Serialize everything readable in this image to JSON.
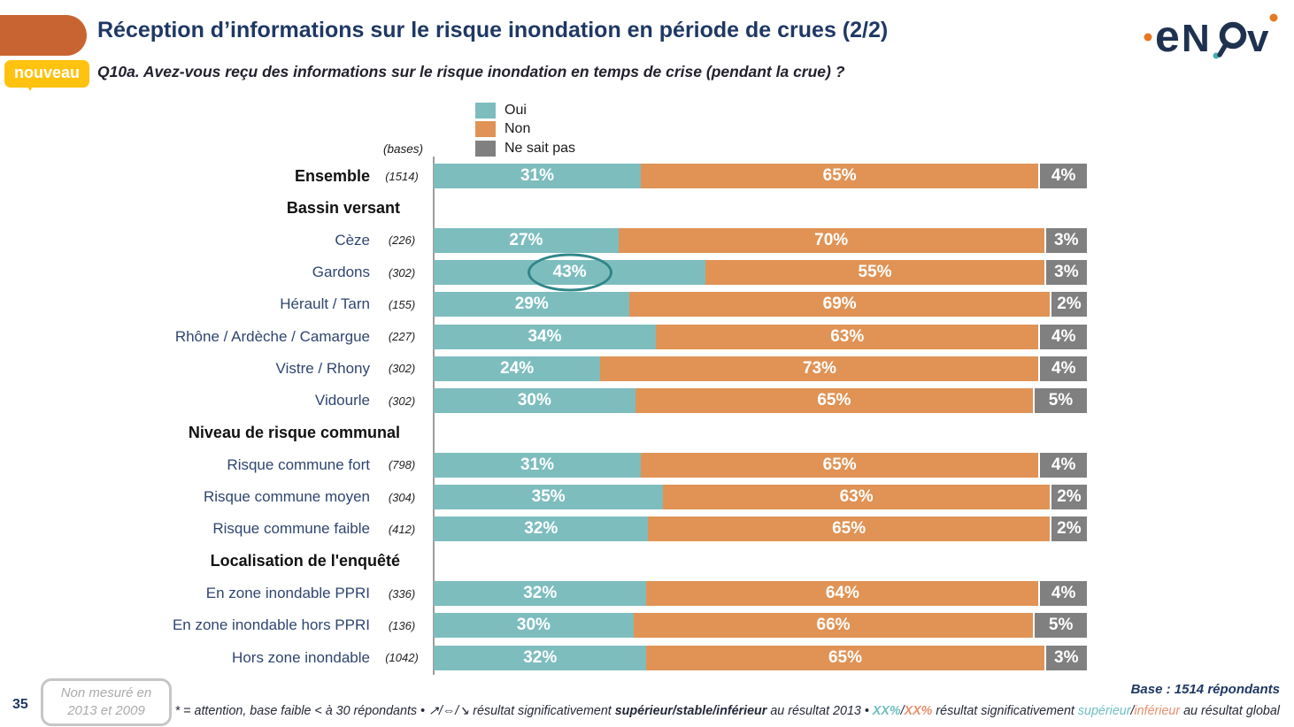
{
  "header": {
    "badge": "nouveau",
    "title": "Réception d’informations sur le risque inondation en période de crues (2/2)",
    "question": "Q10a. Avez-vous reçu des informations sur le risque inondation en temps de crise (pendant la crue) ?",
    "logo_name": "enov"
  },
  "colors": {
    "oui_teal": "#7EBDBE",
    "non_orange": "#E09355",
    "nsp_gray": "#808080",
    "title_navy": "#1F3864",
    "label_navy": "#2F4570",
    "badge_yellow": "#FFC20E",
    "tab_orange": "#C86431",
    "circle_annotation_teal": "#2F8689"
  },
  "chart_data": {
    "type": "bar",
    "stacked": true,
    "orientation": "horizontal",
    "unit": "%",
    "xlim": [
      0,
      100
    ],
    "grid": false,
    "legend_position": "top",
    "bases_label": "(bases)",
    "legend": [
      "Oui",
      "Non",
      "Ne sait pas"
    ],
    "series_colors": [
      "#7EBDBE",
      "#E09355",
      "#808080"
    ],
    "rows": [
      {
        "type": "data",
        "label": "Ensemble",
        "base": "(1514)",
        "values": [
          31,
          65,
          4
        ],
        "emphasis": true
      },
      {
        "type": "section",
        "label": "Bassin versant"
      },
      {
        "type": "data",
        "label": "Cèze",
        "base": "(226)",
        "values": [
          27,
          70,
          3
        ]
      },
      {
        "type": "data",
        "label": "Gardons",
        "base": "(302)",
        "values": [
          43,
          55,
          3
        ],
        "circled_segment": 0
      },
      {
        "type": "data",
        "label": "Hérault / Tarn",
        "base": "(155)",
        "values": [
          29,
          69,
          2
        ]
      },
      {
        "type": "data",
        "label": "Rhône / Ardèche / Camargue",
        "base": "(227)",
        "values": [
          34,
          63,
          4
        ]
      },
      {
        "type": "data",
        "label": "Vistre / Rhony",
        "base": "(302)",
        "values": [
          24,
          73,
          4
        ]
      },
      {
        "type": "data",
        "label": "Vidourle",
        "base": "(302)",
        "values": [
          30,
          65,
          5
        ]
      },
      {
        "type": "section",
        "label": "Niveau de risque communal"
      },
      {
        "type": "data",
        "label": "Risque commune fort",
        "base": "(798)",
        "values": [
          31,
          65,
          4
        ]
      },
      {
        "type": "data",
        "label": "Risque commune moyen",
        "base": "(304)",
        "values": [
          35,
          63,
          2
        ]
      },
      {
        "type": "data",
        "label": "Risque commune faible",
        "base": "(412)",
        "values": [
          32,
          65,
          2
        ]
      },
      {
        "type": "section",
        "label": "Localisation de l'enquêté"
      },
      {
        "type": "data",
        "label": "En zone inondable PPRI",
        "base": "(336)",
        "values": [
          32,
          64,
          4
        ]
      },
      {
        "type": "data",
        "label": "En zone inondable hors PPRI",
        "base": "(136)",
        "values": [
          30,
          66,
          5
        ]
      },
      {
        "type": "data",
        "label": "Hors zone inondable",
        "base": "(1042)",
        "values": [
          32,
          65,
          3
        ]
      }
    ]
  },
  "footer": {
    "page_number": "35",
    "note_box": [
      "Non mesuré en",
      "2013 et 2009"
    ],
    "base_text": "Base : 1514 répondants",
    "footnote": {
      "p1": "* = attention, base faible < à 30 répondants • ",
      "p2": "↗/⇔/↘",
      "p3": " résultat significativement ",
      "p4": "supérieur/stable/inférieur",
      "p5": " au résultat 2013 • ",
      "p6": "XX%",
      "p7": "/",
      "p8": "XX%",
      "p9": " résultat significativement ",
      "p10": "supérieur",
      "p11": "/",
      "p12": "inférieur",
      "p13": " au résultat global"
    }
  }
}
